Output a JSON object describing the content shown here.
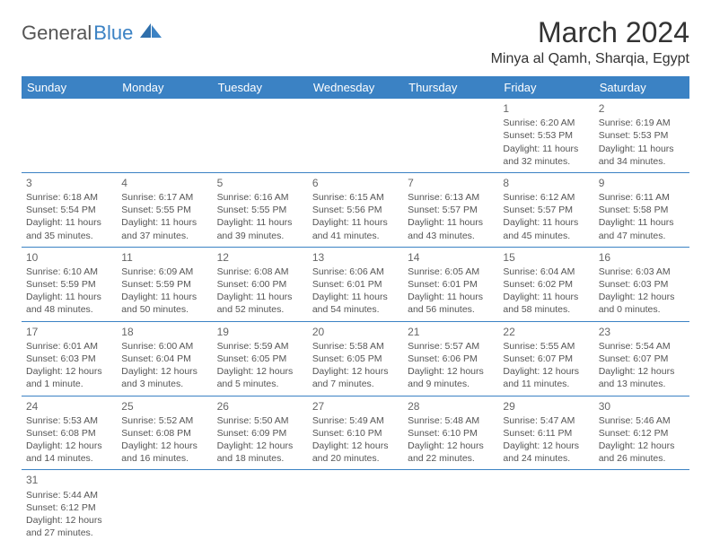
{
  "logo": {
    "part1": "General",
    "part2": "Blue"
  },
  "title": "March 2024",
  "location": "Minya al Qamh, Sharqia, Egypt",
  "colors": {
    "header_bg": "#3b82c4",
    "header_fg": "#ffffff",
    "border": "#3b82c4",
    "text": "#555555",
    "title_text": "#333333"
  },
  "day_names": [
    "Sunday",
    "Monday",
    "Tuesday",
    "Wednesday",
    "Thursday",
    "Friday",
    "Saturday"
  ],
  "weeks": [
    [
      null,
      null,
      null,
      null,
      null,
      {
        "n": "1",
        "rise": "Sunrise: 6:20 AM",
        "set": "Sunset: 5:53 PM",
        "day": "Daylight: 11 hours and 32 minutes."
      },
      {
        "n": "2",
        "rise": "Sunrise: 6:19 AM",
        "set": "Sunset: 5:53 PM",
        "day": "Daylight: 11 hours and 34 minutes."
      }
    ],
    [
      {
        "n": "3",
        "rise": "Sunrise: 6:18 AM",
        "set": "Sunset: 5:54 PM",
        "day": "Daylight: 11 hours and 35 minutes."
      },
      {
        "n": "4",
        "rise": "Sunrise: 6:17 AM",
        "set": "Sunset: 5:55 PM",
        "day": "Daylight: 11 hours and 37 minutes."
      },
      {
        "n": "5",
        "rise": "Sunrise: 6:16 AM",
        "set": "Sunset: 5:55 PM",
        "day": "Daylight: 11 hours and 39 minutes."
      },
      {
        "n": "6",
        "rise": "Sunrise: 6:15 AM",
        "set": "Sunset: 5:56 PM",
        "day": "Daylight: 11 hours and 41 minutes."
      },
      {
        "n": "7",
        "rise": "Sunrise: 6:13 AM",
        "set": "Sunset: 5:57 PM",
        "day": "Daylight: 11 hours and 43 minutes."
      },
      {
        "n": "8",
        "rise": "Sunrise: 6:12 AM",
        "set": "Sunset: 5:57 PM",
        "day": "Daylight: 11 hours and 45 minutes."
      },
      {
        "n": "9",
        "rise": "Sunrise: 6:11 AM",
        "set": "Sunset: 5:58 PM",
        "day": "Daylight: 11 hours and 47 minutes."
      }
    ],
    [
      {
        "n": "10",
        "rise": "Sunrise: 6:10 AM",
        "set": "Sunset: 5:59 PM",
        "day": "Daylight: 11 hours and 48 minutes."
      },
      {
        "n": "11",
        "rise": "Sunrise: 6:09 AM",
        "set": "Sunset: 5:59 PM",
        "day": "Daylight: 11 hours and 50 minutes."
      },
      {
        "n": "12",
        "rise": "Sunrise: 6:08 AM",
        "set": "Sunset: 6:00 PM",
        "day": "Daylight: 11 hours and 52 minutes."
      },
      {
        "n": "13",
        "rise": "Sunrise: 6:06 AM",
        "set": "Sunset: 6:01 PM",
        "day": "Daylight: 11 hours and 54 minutes."
      },
      {
        "n": "14",
        "rise": "Sunrise: 6:05 AM",
        "set": "Sunset: 6:01 PM",
        "day": "Daylight: 11 hours and 56 minutes."
      },
      {
        "n": "15",
        "rise": "Sunrise: 6:04 AM",
        "set": "Sunset: 6:02 PM",
        "day": "Daylight: 11 hours and 58 minutes."
      },
      {
        "n": "16",
        "rise": "Sunrise: 6:03 AM",
        "set": "Sunset: 6:03 PM",
        "day": "Daylight: 12 hours and 0 minutes."
      }
    ],
    [
      {
        "n": "17",
        "rise": "Sunrise: 6:01 AM",
        "set": "Sunset: 6:03 PM",
        "day": "Daylight: 12 hours and 1 minute."
      },
      {
        "n": "18",
        "rise": "Sunrise: 6:00 AM",
        "set": "Sunset: 6:04 PM",
        "day": "Daylight: 12 hours and 3 minutes."
      },
      {
        "n": "19",
        "rise": "Sunrise: 5:59 AM",
        "set": "Sunset: 6:05 PM",
        "day": "Daylight: 12 hours and 5 minutes."
      },
      {
        "n": "20",
        "rise": "Sunrise: 5:58 AM",
        "set": "Sunset: 6:05 PM",
        "day": "Daylight: 12 hours and 7 minutes."
      },
      {
        "n": "21",
        "rise": "Sunrise: 5:57 AM",
        "set": "Sunset: 6:06 PM",
        "day": "Daylight: 12 hours and 9 minutes."
      },
      {
        "n": "22",
        "rise": "Sunrise: 5:55 AM",
        "set": "Sunset: 6:07 PM",
        "day": "Daylight: 12 hours and 11 minutes."
      },
      {
        "n": "23",
        "rise": "Sunrise: 5:54 AM",
        "set": "Sunset: 6:07 PM",
        "day": "Daylight: 12 hours and 13 minutes."
      }
    ],
    [
      {
        "n": "24",
        "rise": "Sunrise: 5:53 AM",
        "set": "Sunset: 6:08 PM",
        "day": "Daylight: 12 hours and 14 minutes."
      },
      {
        "n": "25",
        "rise": "Sunrise: 5:52 AM",
        "set": "Sunset: 6:08 PM",
        "day": "Daylight: 12 hours and 16 minutes."
      },
      {
        "n": "26",
        "rise": "Sunrise: 5:50 AM",
        "set": "Sunset: 6:09 PM",
        "day": "Daylight: 12 hours and 18 minutes."
      },
      {
        "n": "27",
        "rise": "Sunrise: 5:49 AM",
        "set": "Sunset: 6:10 PM",
        "day": "Daylight: 12 hours and 20 minutes."
      },
      {
        "n": "28",
        "rise": "Sunrise: 5:48 AM",
        "set": "Sunset: 6:10 PM",
        "day": "Daylight: 12 hours and 22 minutes."
      },
      {
        "n": "29",
        "rise": "Sunrise: 5:47 AM",
        "set": "Sunset: 6:11 PM",
        "day": "Daylight: 12 hours and 24 minutes."
      },
      {
        "n": "30",
        "rise": "Sunrise: 5:46 AM",
        "set": "Sunset: 6:12 PM",
        "day": "Daylight: 12 hours and 26 minutes."
      }
    ],
    [
      {
        "n": "31",
        "rise": "Sunrise: 5:44 AM",
        "set": "Sunset: 6:12 PM",
        "day": "Daylight: 12 hours and 27 minutes."
      },
      null,
      null,
      null,
      null,
      null,
      null
    ]
  ]
}
